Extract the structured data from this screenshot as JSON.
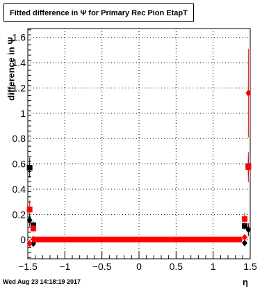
{
  "title_text": "Fitted difference in  Ψ  for Primary Rec Pion EtapT",
  "footer_date": "Wed Aug 23 14:18:19 2017",
  "chart_data": {
    "type": "scatter",
    "title": "Fitted difference in  Ψ  for Primary Rec Pion EtapT",
    "xlabel": "η",
    "ylabel": "difference in  Ψ",
    "xlim": [
      -1.5,
      1.5
    ],
    "ylim": [
      -0.15,
      1.67
    ],
    "grid": true,
    "x_ticks": [
      -1.5,
      -1,
      -0.5,
      0,
      0.5,
      1,
      1.5
    ],
    "x_tick_labels": [
      "−1.5",
      "−1",
      "−0.5",
      "0",
      "0.5",
      "1",
      "1.5"
    ],
    "y_ticks": [
      0,
      0.2,
      0.4,
      0.6,
      0.8,
      1,
      1.2,
      1.4,
      1.6
    ],
    "y_tick_labels": [
      "0",
      "0.2",
      "0.4",
      "0.6",
      "0.8",
      "1",
      "1.2",
      "1.4",
      "1.6"
    ],
    "series": [
      {
        "marker": "square",
        "color": "#000000",
        "points": [
          {
            "x": -1.475,
            "y": 0.57,
            "err": 0.08
          },
          {
            "x": -1.425,
            "y": 0.115,
            "err": 0.03
          },
          {
            "x": 1.425,
            "y": 0.11,
            "err": 0.03
          },
          {
            "x": 1.475,
            "y": 0.58,
            "err": 0.08
          }
        ]
      },
      {
        "marker": "square",
        "color": "#ff0000",
        "points": [
          {
            "x": -1.475,
            "y": 0.24,
            "err": 0.07
          },
          {
            "x": -1.425,
            "y": 0.09,
            "err": 0.03
          },
          {
            "x": 1.425,
            "y": 0.165,
            "err": 0.05
          },
          {
            "x": 1.475,
            "y": 0.575,
            "err": 0.12
          }
        ]
      },
      {
        "marker": "diamond",
        "color": "#000000",
        "points": [
          {
            "x": -1.475,
            "y": 0.155,
            "err": 0.05
          },
          {
            "x": -1.425,
            "y": -0.03,
            "err": 0.02
          },
          {
            "x": 1.425,
            "y": -0.025,
            "err": 0.02
          },
          {
            "x": 1.475,
            "y": 0.08,
            "err": 0.05
          }
        ]
      },
      {
        "marker": "diamond",
        "color": "#ff0000",
        "points": [
          {
            "x": -1.475,
            "y": -0.03,
            "err": 0.03
          },
          {
            "x": -1.425,
            "y": 0.005,
            "err": 0.01
          },
          {
            "x": 1.425,
            "y": 0.02,
            "err": 0.01
          },
          {
            "x": 1.475,
            "y": 1.16,
            "err": 0.35
          }
        ]
      },
      {
        "marker": "band",
        "color": "#ff0000",
        "points": [
          {
            "x": -1.39,
            "y": 0.002
          },
          {
            "x": 1.39,
            "y": 0.002
          }
        ]
      }
    ]
  }
}
